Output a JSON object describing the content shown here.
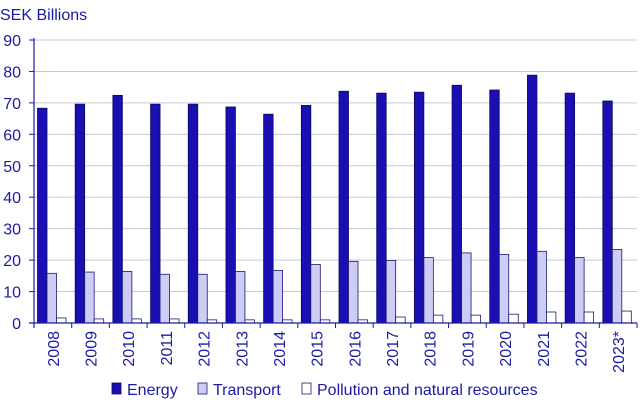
{
  "colors": {
    "text": "#1a1aa6",
    "axis": "#1a1aa6",
    "grid": "#c9c9d6",
    "energy_fill": "#1a0fb3",
    "energy_stroke": "#0b0b5e",
    "transport_fill": "#ccccf5",
    "transport_stroke": "#1a1a6e",
    "pollution_fill": "#ffffff",
    "pollution_stroke": "#1a1a6e"
  },
  "chart_data": {
    "type": "bar",
    "title": "",
    "ylabel": "SEK Billions",
    "xlabel": "",
    "ylim": [
      0,
      90
    ],
    "yticks": [
      0,
      10,
      20,
      30,
      40,
      50,
      60,
      70,
      80,
      90
    ],
    "grid": true,
    "legend_position": "bottom",
    "categories": [
      "2008",
      "2009",
      "2010",
      "2011",
      "2012",
      "2013",
      "2014",
      "2015",
      "2016",
      "2017",
      "2018",
      "2019",
      "2020",
      "2021",
      "2022",
      "2023*"
    ],
    "series": [
      {
        "name": "Energy",
        "color": "#1a0fb3",
        "values": [
          68.3,
          69.6,
          72.4,
          69.6,
          69.6,
          68.7,
          66.4,
          69.2,
          73.7,
          73.1,
          73.4,
          75.6,
          74.1,
          78.8,
          73.1,
          70.6
        ]
      },
      {
        "name": "Transport",
        "color": "#ccccf5",
        "values": [
          15.8,
          16.2,
          16.4,
          15.5,
          15.5,
          16.4,
          16.7,
          18.6,
          19.6,
          19.9,
          20.8,
          22.3,
          21.8,
          22.8,
          20.8,
          23.4
        ]
      },
      {
        "name": "Pollution and natural resources",
        "color": "#ffffff",
        "values": [
          1.6,
          1.3,
          1.3,
          1.3,
          1.0,
          1.0,
          1.0,
          1.0,
          1.0,
          1.9,
          2.5,
          2.5,
          2.8,
          3.5,
          3.5,
          3.8
        ]
      }
    ]
  }
}
